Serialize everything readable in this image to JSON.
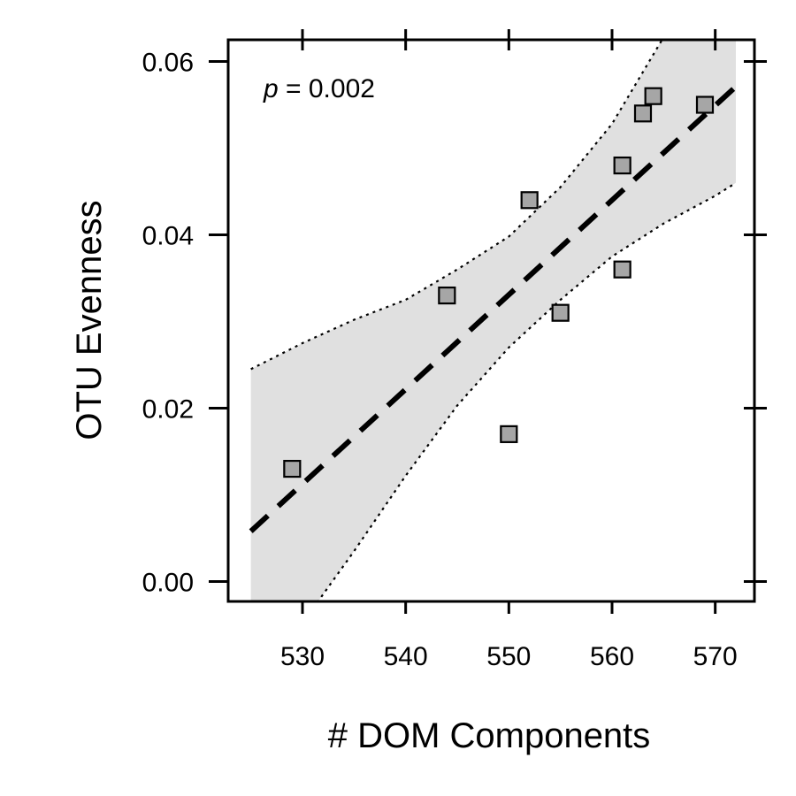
{
  "chart_data": {
    "type": "scatter",
    "xlabel": "# DOM Components",
    "ylabel": "OTU Evenness",
    "xlim": [
      522.8,
      573.8
    ],
    "ylim": [
      -0.0023,
      0.0625
    ],
    "xticks": [
      530,
      540,
      550,
      560,
      570
    ],
    "xtick_labels": [
      "530",
      "540",
      "550",
      "560",
      "570"
    ],
    "yticks": [
      0.0,
      0.02,
      0.04,
      0.06
    ],
    "ytick_labels": [
      "0.00",
      "0.02",
      "0.04",
      "0.06"
    ],
    "annotation": {
      "p_symbol": "p",
      "rest": " = 0.002"
    },
    "grid": false,
    "marker": "square",
    "points": [
      {
        "x": 529,
        "y": 0.013
      },
      {
        "x": 544,
        "y": 0.033
      },
      {
        "x": 550,
        "y": 0.017
      },
      {
        "x": 552,
        "y": 0.044
      },
      {
        "x": 555,
        "y": 0.031
      },
      {
        "x": 561,
        "y": 0.036
      },
      {
        "x": 561,
        "y": 0.048
      },
      {
        "x": 563,
        "y": 0.054
      },
      {
        "x": 564,
        "y": 0.056
      },
      {
        "x": 569,
        "y": 0.055
      }
    ],
    "fit_line": {
      "x": [
        525,
        572
      ],
      "y": [
        0.0058,
        0.0571
      ],
      "style": "dashed"
    },
    "confidence_band": {
      "x": [
        525,
        530,
        535,
        540,
        545,
        550,
        555,
        560,
        565,
        570,
        572
      ],
      "lower": [
        -0.012,
        -0.0048,
        0.0035,
        0.0122,
        0.0203,
        0.027,
        0.0325,
        0.0375,
        0.0413,
        0.0445,
        0.046
      ],
      "upper": [
        0.0245,
        0.0275,
        0.0302,
        0.0325,
        0.036,
        0.0398,
        0.0455,
        0.0528,
        0.0628,
        0.0702,
        0.0735
      ]
    },
    "colors": {
      "band_fill": "#e0e0e0",
      "marker_fill": "#a6a6a6",
      "stroke": "#000000"
    }
  }
}
